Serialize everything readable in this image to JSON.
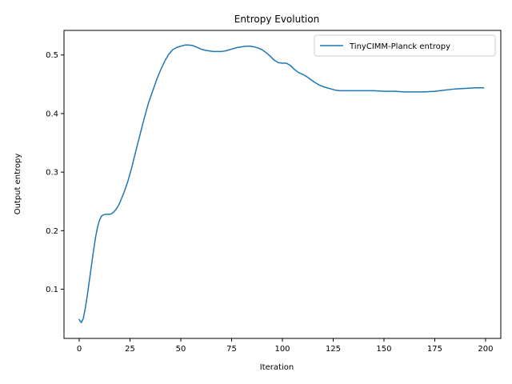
{
  "chart_data": {
    "type": "line",
    "title": "Entropy Evolution",
    "xlabel": "Iteration",
    "ylabel": "Output entropy",
    "xlim": [
      -7.5,
      207.5
    ],
    "ylim": [
      0.016,
      0.542
    ],
    "xticks": [
      0,
      25,
      50,
      75,
      100,
      125,
      150,
      175,
      200
    ],
    "yticks": [
      0.1,
      0.2,
      0.3,
      0.4,
      0.5
    ],
    "xtick_labels": [
      "0",
      "25",
      "50",
      "75",
      "100",
      "125",
      "150",
      "175",
      "200"
    ],
    "ytick_labels": [
      "0.1",
      "0.2",
      "0.3",
      "0.4",
      "0.5"
    ],
    "grid": false,
    "legend_position": "top-right",
    "series": [
      {
        "name": "TinyCIMM-Planck entropy",
        "color": "#1f77b4",
        "x": [
          0,
          1,
          2,
          3,
          4,
          5,
          6,
          7,
          8,
          9,
          10,
          11,
          12,
          13,
          14,
          15,
          16,
          17,
          18,
          19,
          20,
          22,
          24,
          26,
          28,
          30,
          32,
          34,
          36,
          38,
          40,
          42,
          44,
          46,
          48,
          50,
          52,
          54,
          56,
          58,
          60,
          62,
          64,
          66,
          68,
          70,
          72,
          74,
          76,
          78,
          80,
          82,
          84,
          86,
          88,
          90,
          92,
          94,
          96,
          98,
          100,
          102,
          104,
          106,
          108,
          110,
          112,
          114,
          116,
          118,
          120,
          122,
          124,
          126,
          128,
          130,
          135,
          140,
          145,
          150,
          155,
          160,
          165,
          170,
          175,
          180,
          185,
          190,
          195,
          199
        ],
        "values": [
          0.048,
          0.043,
          0.05,
          0.068,
          0.09,
          0.115,
          0.14,
          0.165,
          0.188,
          0.206,
          0.218,
          0.225,
          0.227,
          0.228,
          0.228,
          0.228,
          0.229,
          0.232,
          0.236,
          0.241,
          0.248,
          0.265,
          0.285,
          0.31,
          0.338,
          0.365,
          0.392,
          0.417,
          0.437,
          0.457,
          0.474,
          0.489,
          0.501,
          0.509,
          0.513,
          0.515,
          0.517,
          0.517,
          0.516,
          0.513,
          0.51,
          0.508,
          0.507,
          0.506,
          0.506,
          0.506,
          0.507,
          0.509,
          0.511,
          0.513,
          0.514,
          0.515,
          0.515,
          0.514,
          0.512,
          0.509,
          0.504,
          0.498,
          0.491,
          0.487,
          0.486,
          0.486,
          0.482,
          0.475,
          0.47,
          0.467,
          0.463,
          0.458,
          0.453,
          0.449,
          0.446,
          0.444,
          0.442,
          0.44,
          0.439,
          0.439,
          0.439,
          0.439,
          0.439,
          0.438,
          0.438,
          0.437,
          0.437,
          0.437,
          0.438,
          0.44,
          0.442,
          0.443,
          0.444,
          0.444
        ]
      }
    ]
  }
}
